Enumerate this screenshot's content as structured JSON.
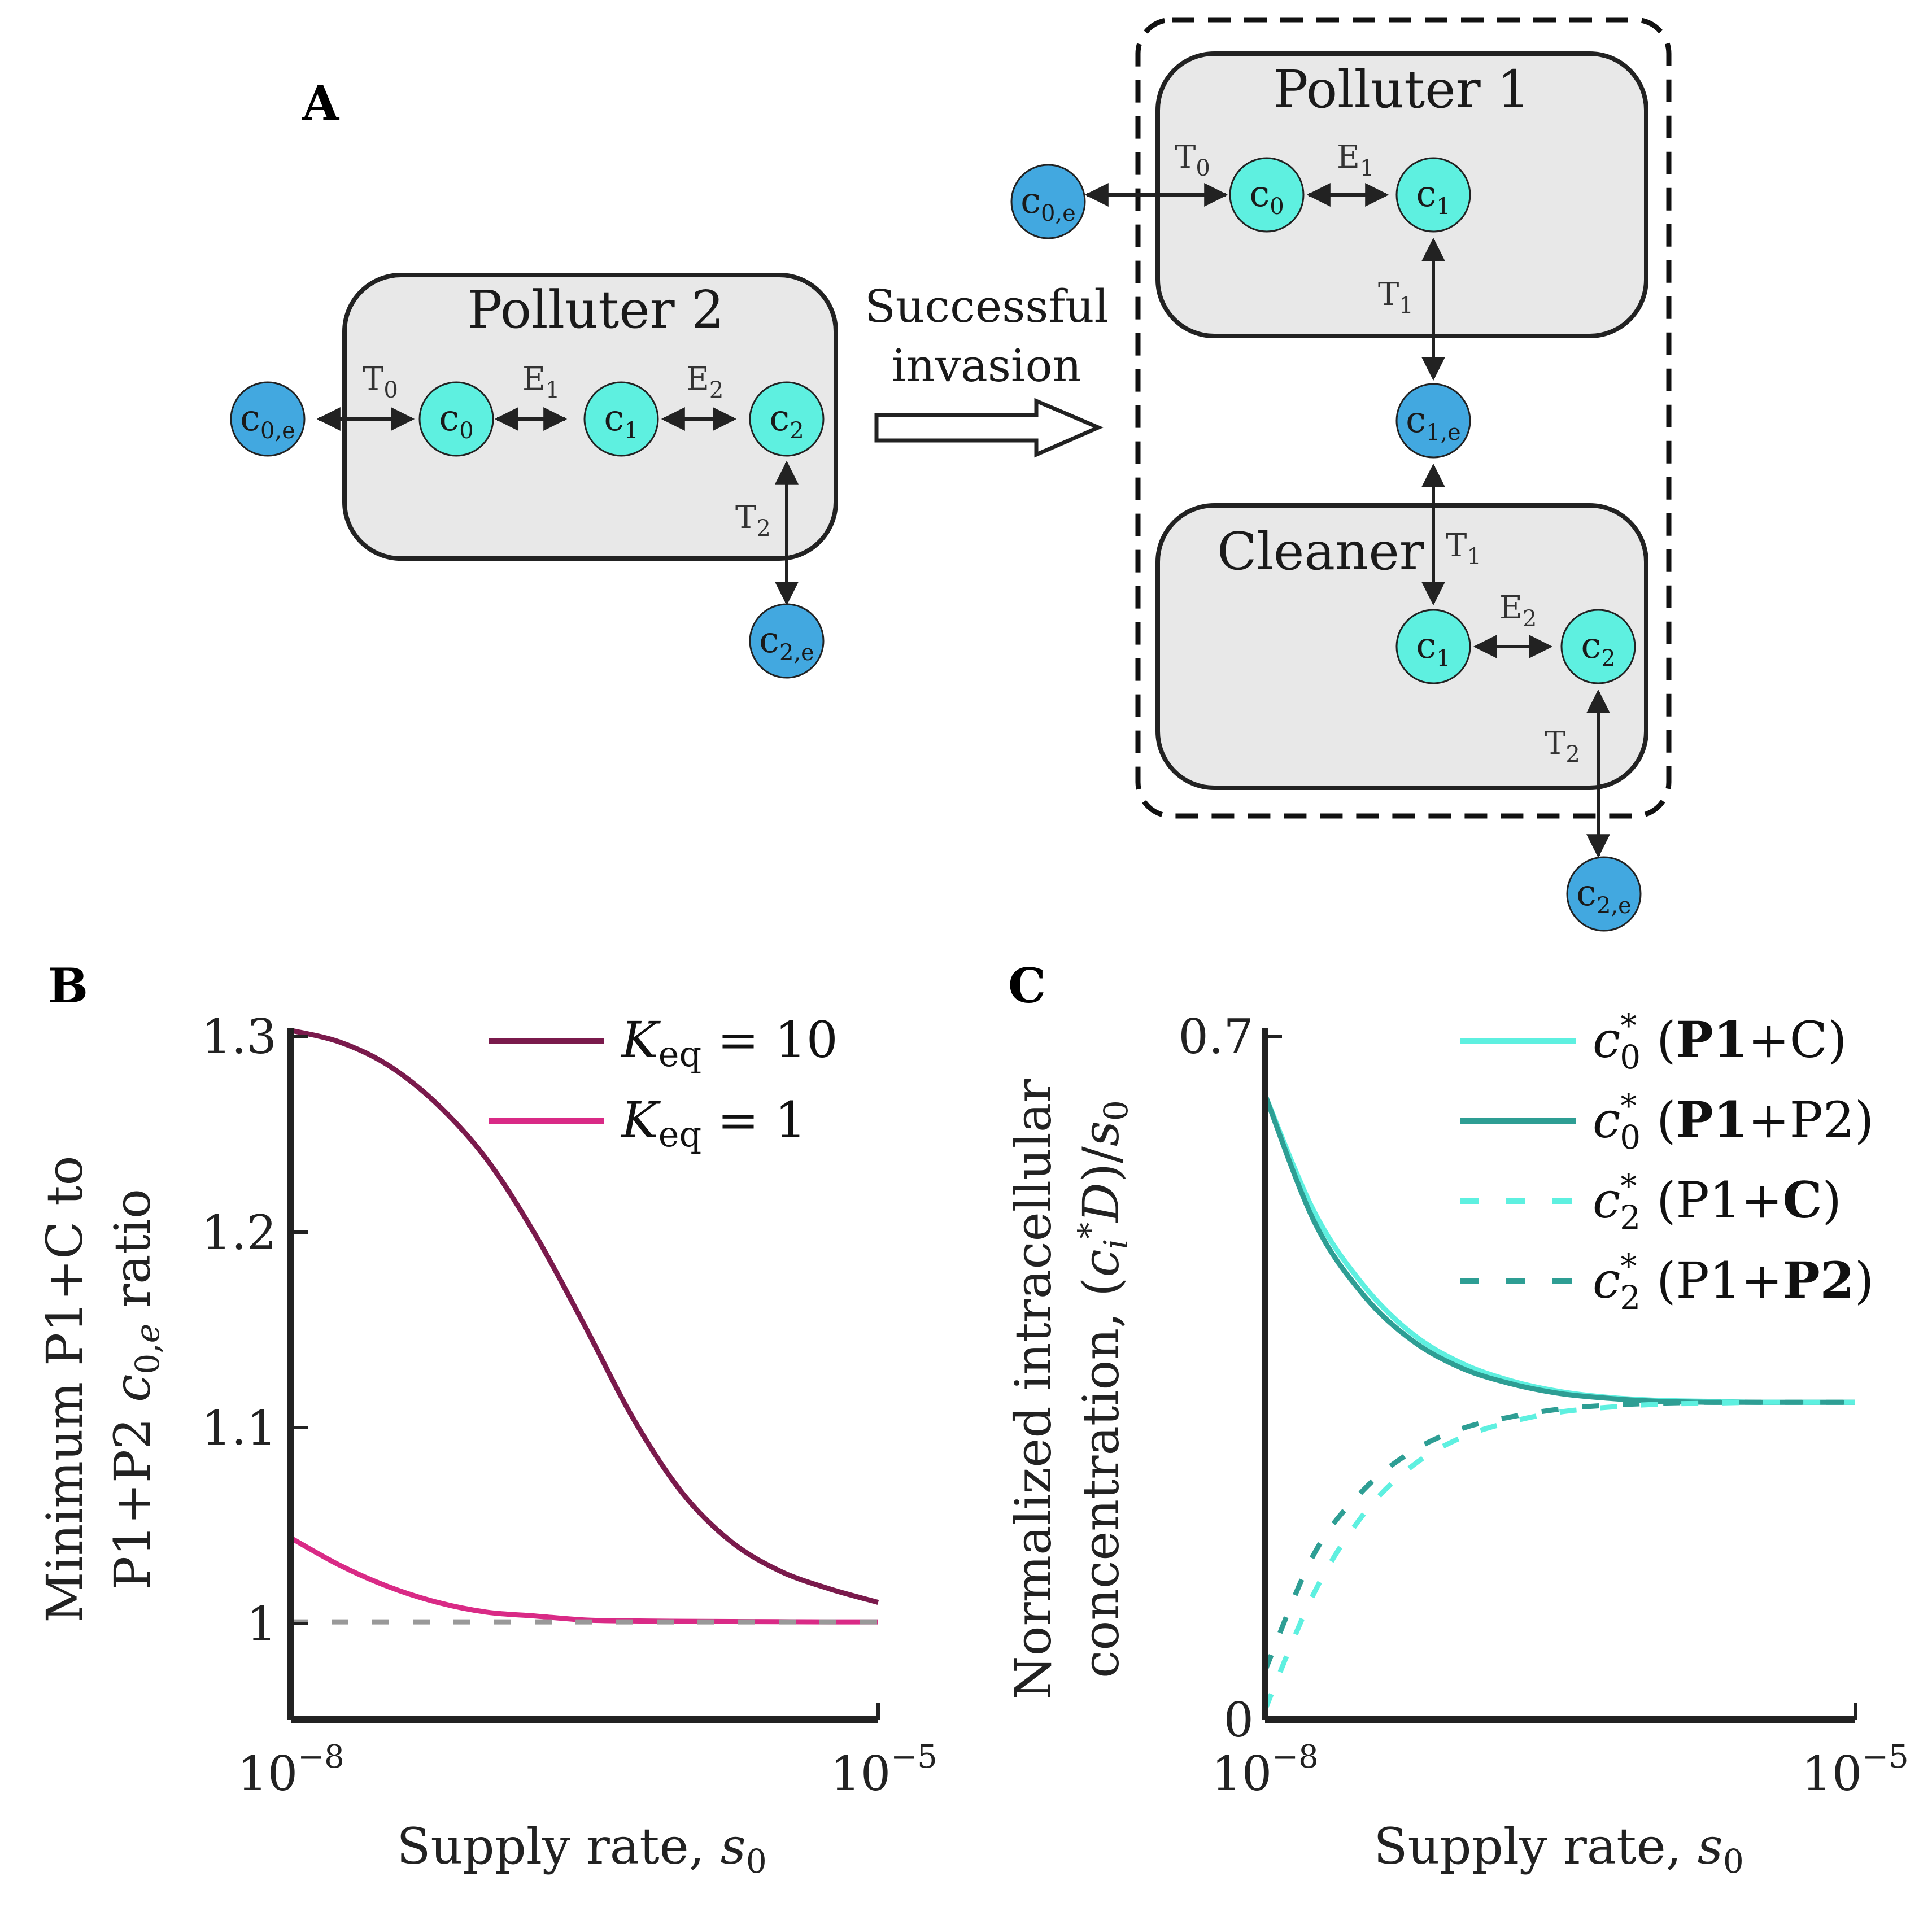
{
  "figure": {
    "panel_a": {
      "letter": "A",
      "polluter2": {
        "title": "Polluter 2",
        "nodes": [
          "c0,e",
          "c0",
          "c1",
          "c2",
          "c2,e"
        ],
        "edges": [
          "T0",
          "E1",
          "E2",
          "T2"
        ]
      },
      "invasion_label_line1": "Successful",
      "invasion_label_line2": "invasion",
      "polluter1": {
        "title": "Polluter 1",
        "nodes": [
          "c0,e",
          "c0",
          "c1",
          "c1,e"
        ],
        "edges": [
          "T0",
          "E1",
          "T1"
        ]
      },
      "cleaner": {
        "title": "Cleaner",
        "nodes": [
          "c1",
          "c2",
          "c2,e"
        ],
        "edges": [
          "T1",
          "E2",
          "T2"
        ]
      },
      "colors": {
        "box_fill": "#e8e8e8",
        "intracellular_node": "#5ef0e0",
        "external_node": "#42a8e0"
      }
    }
  },
  "chart_data": [
    {
      "panel": "B",
      "type": "line",
      "ylabel_line1": "Minimum P1+C to",
      "ylabel_line2": "P1+P2 c0,e ratio",
      "xlabel": "Supply rate, s0",
      "x_scale": "log",
      "xlim": [
        1e-08,
        1e-05
      ],
      "ylim": [
        0.95,
        1.3
      ],
      "xticks": [
        "10^-8",
        "10^-5"
      ],
      "yticks": [
        "1",
        "1.1",
        "1.2",
        "1.3"
      ],
      "legend_position": "top-right",
      "series": [
        {
          "name": "Keq = 10",
          "color": "#7a1a4c",
          "style": "solid",
          "x": [
            1e-08,
            1.78e-08,
            3.16e-08,
            5.62e-08,
            1e-07,
            1.78e-07,
            3.16e-07,
            5.62e-07,
            1e-06,
            1.78e-06,
            3.16e-06,
            5.62e-06,
            1e-05
          ],
          "y": [
            1.303,
            1.297,
            1.285,
            1.265,
            1.237,
            1.198,
            1.152,
            1.104,
            1.066,
            1.041,
            1.026,
            1.017,
            1.01
          ]
        },
        {
          "name": "Keq = 1",
          "color": "#d92a86",
          "style": "solid",
          "x": [
            1e-08,
            1.78e-08,
            3.16e-08,
            5.62e-08,
            1e-07,
            1.78e-07,
            3.16e-07,
            5.62e-07,
            1e-06,
            1.78e-06,
            3.16e-06,
            5.62e-06,
            1e-05
          ],
          "y": [
            1.043,
            1.029,
            1.018,
            1.01,
            1.005,
            1.003,
            1.001,
            1.0005,
            1.0003,
            1.0002,
            1.0001,
            1.0,
            1.0
          ]
        },
        {
          "color": "#999999",
          "style": "dashed",
          "x": [
            1e-08,
            1e-05
          ],
          "y": [
            1.0,
            1.0
          ]
        }
      ]
    },
    {
      "panel": "C",
      "type": "line",
      "ylabel_line1": "Normalized intracellular",
      "ylabel_line2": "concentration, (ci* D)/s0",
      "xlabel": "Supply rate, s0",
      "x_scale": "log",
      "xlim": [
        1e-08,
        1e-05
      ],
      "ylim": [
        0,
        0.7
      ],
      "xticks": [
        "10^-8",
        "10^-5"
      ],
      "yticks": [
        "0",
        "0.7"
      ],
      "legend_position": "top-right",
      "series": [
        {
          "name": "c0* (P1+C)",
          "color": "#5ef0e0",
          "style": "solid",
          "x": [
            1e-08,
            1.78e-08,
            3.16e-08,
            5.62e-08,
            1e-07,
            1.78e-07,
            3.16e-07,
            5.62e-07,
            1e-06,
            1.78e-06,
            3.16e-06,
            5.62e-06,
            1e-05
          ],
          "y": [
            0.64,
            0.52,
            0.445,
            0.395,
            0.365,
            0.347,
            0.336,
            0.33,
            0.327,
            0.326,
            0.325,
            0.325,
            0.325
          ]
        },
        {
          "name": "c0* (P1+P2)",
          "color": "#2e9e94",
          "style": "solid",
          "x": [
            1e-08,
            1.78e-08,
            3.16e-08,
            5.62e-08,
            1e-07,
            1.78e-07,
            3.16e-07,
            5.62e-07,
            1e-06,
            1.78e-06,
            3.16e-06,
            5.62e-06,
            1e-05
          ],
          "y": [
            0.64,
            0.51,
            0.435,
            0.388,
            0.36,
            0.344,
            0.334,
            0.329,
            0.326,
            0.325,
            0.325,
            0.325,
            0.325
          ]
        },
        {
          "name": "c2* (P1+C)",
          "color": "#5ef0e0",
          "style": "dashed",
          "x": [
            1e-08,
            1.78e-08,
            3.16e-08,
            5.62e-08,
            1e-07,
            1.78e-07,
            3.16e-07,
            5.62e-07,
            1e-06,
            1.78e-06,
            3.16e-06,
            5.62e-06,
            1e-05
          ],
          "y": [
            0.01,
            0.13,
            0.21,
            0.26,
            0.289,
            0.305,
            0.315,
            0.32,
            0.323,
            0.324,
            0.325,
            0.325,
            0.325
          ]
        },
        {
          "name": "c2* (P1+P2)",
          "color": "#2e9e94",
          "style": "dashed",
          "x": [
            1e-08,
            1.78e-08,
            3.16e-08,
            5.62e-08,
            1e-07,
            1.78e-07,
            3.16e-07,
            5.62e-07,
            1e-06,
            1.78e-06,
            3.16e-06,
            5.62e-06,
            1e-05
          ],
          "y": [
            0.05,
            0.17,
            0.235,
            0.275,
            0.298,
            0.31,
            0.318,
            0.322,
            0.324,
            0.325,
            0.325,
            0.325,
            0.325
          ]
        }
      ]
    }
  ]
}
